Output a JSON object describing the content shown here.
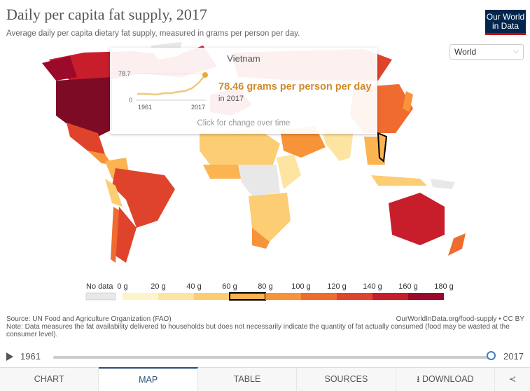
{
  "header": {
    "title": "Daily per capita fat supply, 2017",
    "subtitle": "Average daily per capita dietary fat supply, measured in grams per person per day.",
    "logo": "Our World in Data"
  },
  "region_select": {
    "value": "World"
  },
  "tooltip": {
    "country": "Vietnam",
    "value": "78.46 grams per person per day",
    "year": "in 2017",
    "cta": "Click for change over time",
    "spark_max_label": "78.7",
    "spark_min_label": "0",
    "spark_start": "1961",
    "spark_end": "2017"
  },
  "legend": {
    "no_data": "No data",
    "bins": [
      "0 g",
      "20 g",
      "40 g",
      "60 g",
      "80 g",
      "100 g",
      "120 g",
      "140 g",
      "160 g",
      "180 g"
    ],
    "colors": [
      "#fef4c9",
      "#fde4a1",
      "#fccd72",
      "#fbb450",
      "#f79339",
      "#ef6b2f",
      "#e0432b",
      "#c81e2c",
      "#9b0a2a"
    ],
    "highlighted_bin": 3
  },
  "footer": {
    "source": "Source: UN Food and Agriculture Organization (FAO)",
    "credit": "OurWorldInData.org/food-supply • CC BY",
    "note": "Note: Data measures the fat availability delivered to households but does not necessarily indicate the quantity of fat actually consumed (food may be wasted at the consumer level)."
  },
  "timeline": {
    "start": "1961",
    "end": "2017"
  },
  "tabs": [
    "CHART",
    "MAP",
    "TABLE",
    "SOURCES",
    "DOWNLOAD"
  ],
  "active_tab": "MAP"
}
